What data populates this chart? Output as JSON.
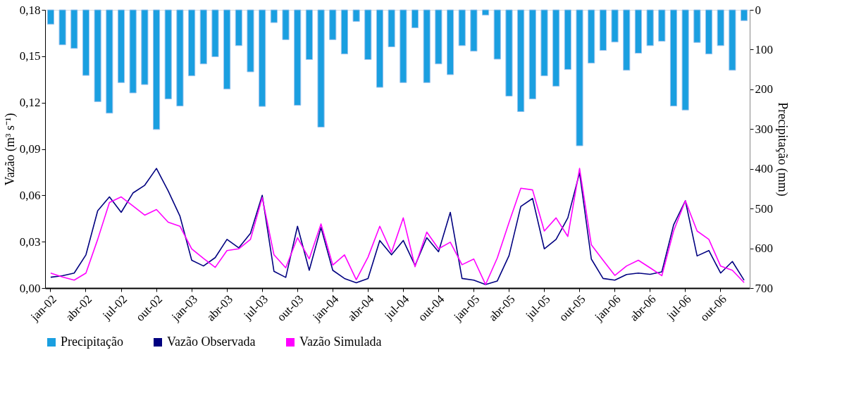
{
  "chart_data": {
    "type": "line",
    "ylabel": "Vazão (m³ s⁻¹)",
    "y2label": "Precipitação (mm)",
    "categories": [
      "jan-02",
      null,
      null,
      "abr-02",
      null,
      null,
      "jul-02",
      null,
      null,
      "out-02",
      null,
      null,
      "jan-03",
      null,
      null,
      "abr-03",
      null,
      null,
      "jul-03",
      null,
      null,
      "out-03",
      null,
      null,
      "jan-04",
      null,
      null,
      "abr-04",
      null,
      null,
      "jul-04",
      null,
      null,
      "out-04",
      null,
      null,
      "jan-05",
      null,
      null,
      "abr-05",
      null,
      null,
      "jul-05",
      null,
      null,
      "out-05",
      null,
      null,
      "jan-06",
      null,
      null,
      "abr-06",
      null,
      null,
      "jul-06",
      null,
      null,
      "out-06",
      null,
      null
    ],
    "ylim": [
      0,
      0.18
    ],
    "yticks": [
      {
        "value": 0,
        "label": "0,00"
      },
      {
        "value": 0.03,
        "label": "0,03"
      },
      {
        "value": 0.06,
        "label": "0,06"
      },
      {
        "value": 0.09,
        "label": "0,09"
      },
      {
        "value": 0.12,
        "label": "0,12"
      },
      {
        "value": 0.15,
        "label": "0,15"
      },
      {
        "value": 0.18,
        "label": "0,18"
      }
    ],
    "y2lim": [
      700,
      0
    ],
    "y2ticks": [
      0,
      100,
      200,
      300,
      400,
      500,
      600,
      700
    ],
    "series": [
      {
        "name": "Precipitação",
        "type": "bar",
        "axis": "y2",
        "color": "#1a9fe0",
        "values": [
          36,
          88,
          97,
          165,
          231,
          260,
          183,
          209,
          188,
          301,
          224,
          242,
          166,
          136,
          118,
          199,
          90,
          156,
          243,
          32,
          75,
          240,
          125,
          295,
          75,
          111,
          29,
          125,
          195,
          93,
          183,
          45,
          183,
          136,
          163,
          90,
          104,
          13,
          124,
          217,
          256,
          224,
          166,
          192,
          150,
          342,
          134,
          102,
          81,
          152,
          109,
          90,
          79,
          242,
          252,
          82,
          111,
          90,
          152,
          27
        ]
      },
      {
        "name": "Vazão Observada",
        "color": "#000080",
        "values": [
          0.007,
          0.008,
          0.0097,
          0.0215,
          0.05,
          0.059,
          0.049,
          0.0615,
          0.0665,
          0.0774,
          0.0628,
          0.0465,
          0.018,
          0.0143,
          0.0197,
          0.0315,
          0.026,
          0.0354,
          0.06,
          0.0108,
          0.0069,
          0.04,
          0.0115,
          0.0392,
          0.0115,
          0.0062,
          0.0034,
          0.0062,
          0.0308,
          0.0215,
          0.0308,
          0.0146,
          0.0326,
          0.0235,
          0.049,
          0.0062,
          0.0051,
          0.0023,
          0.0046,
          0.021,
          0.0528,
          0.058,
          0.0254,
          0.0315,
          0.0454,
          0.0746,
          0.0188,
          0.0062,
          0.0051,
          0.0088,
          0.0097,
          0.0089,
          0.0105,
          0.0408,
          0.0565,
          0.0208,
          0.0243,
          0.0097,
          0.0172,
          0.0051
        ]
      },
      {
        "name": "Vazão Simulada",
        "color": "#ff00ff",
        "values": [
          0.0097,
          0.0072,
          0.0051,
          0.0097,
          0.0315,
          0.0554,
          0.059,
          0.0531,
          0.0472,
          0.0508,
          0.0426,
          0.04,
          0.0254,
          0.0192,
          0.0134,
          0.0243,
          0.0254,
          0.0315,
          0.0585,
          0.0215,
          0.0131,
          0.0326,
          0.0189,
          0.0415,
          0.0149,
          0.0215,
          0.0054,
          0.02,
          0.04,
          0.0231,
          0.0454,
          0.0138,
          0.0362,
          0.0254,
          0.0297,
          0.0151,
          0.0188,
          0.0023,
          0.0195,
          0.0425,
          0.0646,
          0.0635,
          0.0369,
          0.0454,
          0.0334,
          0.0774,
          0.028,
          0.018,
          0.0082,
          0.0143,
          0.018,
          0.0131,
          0.008,
          0.0369,
          0.0565,
          0.0369,
          0.0315,
          0.0142,
          0.0115,
          0.0035
        ]
      }
    ],
    "grid": false,
    "legend": "bottom",
    "marker": "none",
    "line_style": "solid"
  }
}
